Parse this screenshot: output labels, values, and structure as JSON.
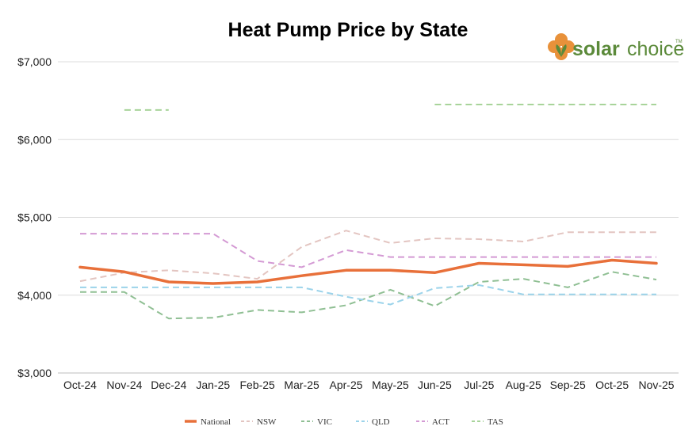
{
  "chart_data": {
    "type": "line",
    "title": "Heat Pump Price by State",
    "categories": [
      "Oct-24",
      "Nov-24",
      "Dec-24",
      "Jan-25",
      "Feb-25",
      "Mar-25",
      "Apr-25",
      "May-25",
      "Jun-25",
      "Jul-25",
      "Aug-25",
      "Sep-25",
      "Oct-25",
      "Nov-25"
    ],
    "ylim": [
      3000,
      7000
    ],
    "yticks": [
      "$3,000",
      "$4,000",
      "$5,000",
      "$6,000",
      "$7,000"
    ],
    "ytick_values": [
      3000,
      4000,
      5000,
      6000,
      7000
    ],
    "grid": true,
    "legend_position": "bottom",
    "series": [
      {
        "name": "National",
        "color": "#e8703a",
        "dashed": false,
        "values": [
          4360,
          4300,
          4170,
          4150,
          4170,
          4250,
          4320,
          4320,
          4290,
          4410,
          4390,
          4370,
          4450,
          4410
        ]
      },
      {
        "name": "NSW",
        "color": "#e3c5c1",
        "dashed": true,
        "values": [
          4180,
          4290,
          4320,
          4280,
          4210,
          4620,
          4830,
          4670,
          4730,
          4720,
          4690,
          4810,
          4810,
          4810
        ]
      },
      {
        "name": "VIC",
        "color": "#8fbf93",
        "dashed": true,
        "values": [
          4040,
          4040,
          3700,
          3710,
          3810,
          3780,
          3870,
          4070,
          3860,
          4170,
          4210,
          4100,
          4300,
          4200
        ]
      },
      {
        "name": "QLD",
        "color": "#9bd3ea",
        "dashed": true,
        "values": [
          4100,
          4100,
          4100,
          4100,
          4100,
          4100,
          3980,
          3880,
          4090,
          4130,
          4010,
          4010,
          4010,
          4010
        ]
      },
      {
        "name": "ACT",
        "color": "#d49ad4",
        "dashed": true,
        "values": [
          4790,
          4790,
          4790,
          4790,
          4440,
          4360,
          4580,
          4490,
          4490,
          4490,
          4490,
          4490,
          4490,
          4490
        ]
      },
      {
        "name": "TAS",
        "color": "#a8d49a",
        "dashed": true,
        "values": [
          null,
          6380,
          6380,
          null,
          null,
          null,
          null,
          null,
          6450,
          6450,
          6450,
          6450,
          6450,
          6450
        ]
      }
    ]
  },
  "logo": {
    "word1": "solar",
    "word2": "choice",
    "tm": "TM",
    "colors": {
      "orange": "#e8913a",
      "green": "#5b8a3a"
    }
  }
}
